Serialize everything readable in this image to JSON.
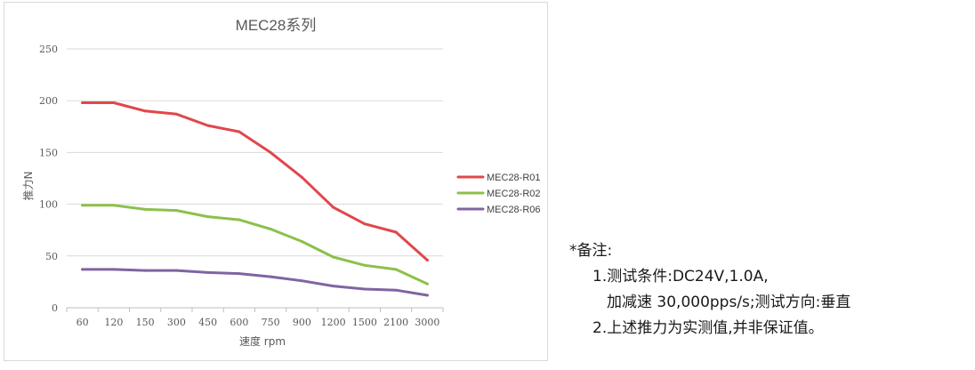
{
  "chart_data": {
    "type": "line",
    "title": "MEC28系列",
    "xlabel": "速度 rpm",
    "ylabel": "推力N",
    "categories": [
      "60",
      "120",
      "150",
      "300",
      "450",
      "600",
      "750",
      "900",
      "1200",
      "1500",
      "2100",
      "3000"
    ],
    "ylim": [
      0,
      250
    ],
    "yticks": [
      0,
      50,
      100,
      150,
      200,
      250
    ],
    "grid": "horizontal",
    "legend": "right",
    "series": [
      {
        "name": "MEC28-R01",
        "color": "#e0474c",
        "values": [
          198,
          198,
          190,
          187,
          176,
          170,
          150,
          126,
          97,
          81,
          73,
          46
        ]
      },
      {
        "name": "MEC28-R02",
        "color": "#8cc04b",
        "values": [
          99,
          99,
          95,
          94,
          88,
          85,
          76,
          64,
          49,
          41,
          37,
          23
        ]
      },
      {
        "name": "MEC28-R06",
        "color": "#8064a2",
        "values": [
          37,
          37,
          36,
          36,
          34,
          33,
          30,
          26,
          21,
          18,
          17,
          12
        ]
      }
    ]
  },
  "notes": {
    "title": "*备注:",
    "line1": "1.测试条件:DC24V,1.0A,",
    "line2": "加减速 30,000pps/s;测试方向:垂直",
    "line3": "2.上述推力为实测值,并非保证值。"
  }
}
